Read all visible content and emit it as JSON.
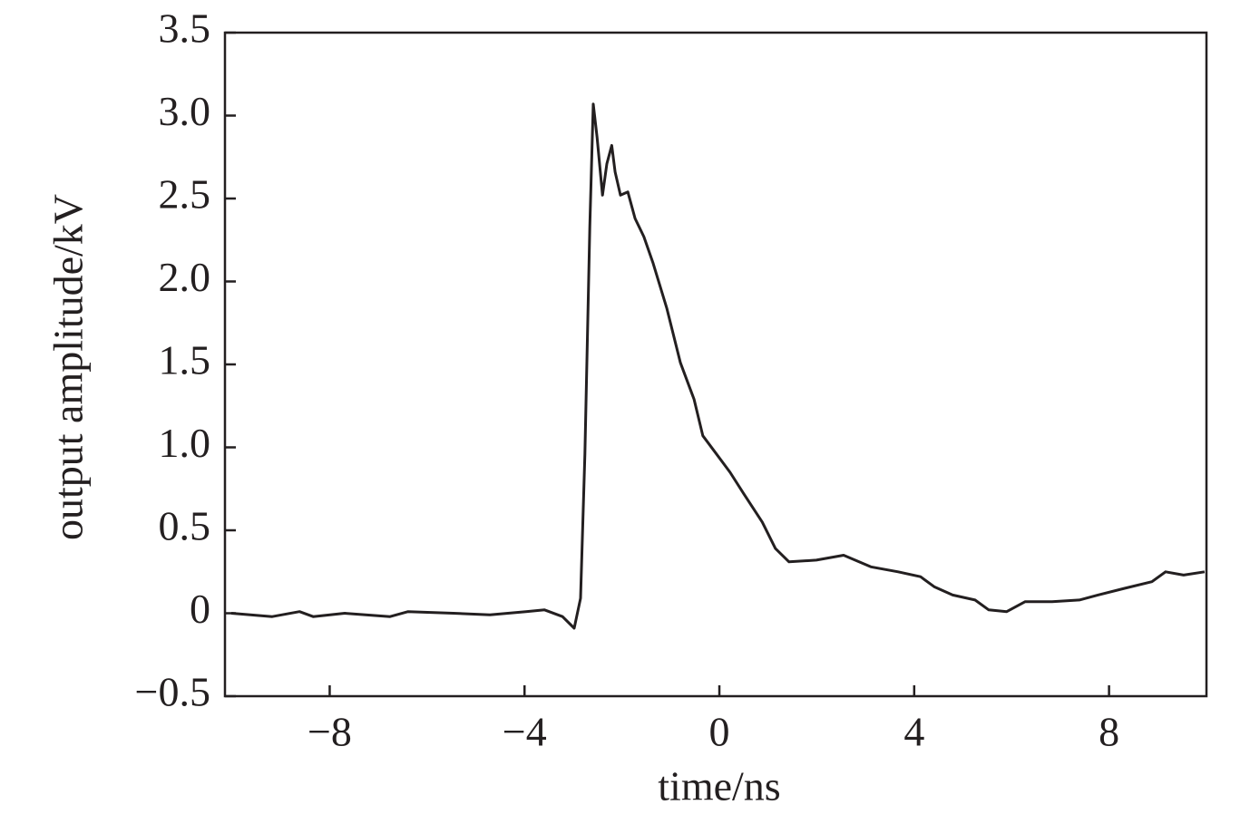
{
  "chart_data": {
    "type": "line",
    "x_label": "time/ns",
    "y_label": "output amplitude/kV",
    "xlim": [
      -10.15,
      10
    ],
    "ylim": [
      -0.5,
      3.5
    ],
    "xticks": [
      {
        "value": -8,
        "label": "−8"
      },
      {
        "value": -4,
        "label": "−4"
      },
      0,
      4,
      8
    ],
    "yticks": [
      {
        "value": -0.5,
        "label": "−0.5"
      },
      0,
      0.5,
      {
        "value": 1,
        "label": "1.0"
      },
      1.5,
      {
        "value": 2,
        "label": "2.0"
      },
      2.5,
      {
        "value": 3,
        "label": "3.0"
      },
      3.5
    ],
    "series": [
      {
        "color": "#231f20",
        "x": [
          -10.02,
          -9.18,
          -8.62,
          -8.34,
          -7.69,
          -6.76,
          -6.39,
          -5.46,
          -4.71,
          -3.97,
          -3.59,
          -3.22,
          -2.98,
          -2.85,
          -2.76,
          -2.66,
          -2.59,
          -2.51,
          -2.4,
          -2.31,
          -2.21,
          -2.14,
          -2.03,
          -1.88,
          -1.73,
          -1.55,
          -1.36,
          -1.08,
          -0.8,
          -0.52,
          -0.34,
          -0.06,
          0.22,
          0.5,
          0.88,
          1.15,
          1.43,
          1.99,
          2.55,
          3.11,
          3.67,
          4.13,
          4.41,
          4.79,
          5.25,
          5.53,
          5.9,
          6.28,
          6.83,
          7.39,
          7.77,
          8.32,
          8.88,
          9.16,
          9.53,
          9.96
        ],
        "values": [
          0,
          -0.02,
          0.01,
          -0.02,
          0,
          -0.02,
          0.01,
          0,
          -0.01,
          0.01,
          0.02,
          -0.02,
          -0.09,
          0.09,
          0.96,
          2.33,
          3.07,
          2.87,
          2.52,
          2.71,
          2.82,
          2.66,
          2.52,
          2.54,
          2.38,
          2.27,
          2.11,
          1.84,
          1.51,
          1.29,
          1.07,
          0.96,
          0.85,
          0.72,
          0.55,
          0.39,
          0.31,
          0.32,
          0.35,
          0.28,
          0.25,
          0.22,
          0.16,
          0.11,
          0.08,
          0.02,
          0.01,
          0.07,
          0.07,
          0.08,
          0.11,
          0.15,
          0.19,
          0.25,
          0.23,
          0.25
        ]
      }
    ]
  }
}
